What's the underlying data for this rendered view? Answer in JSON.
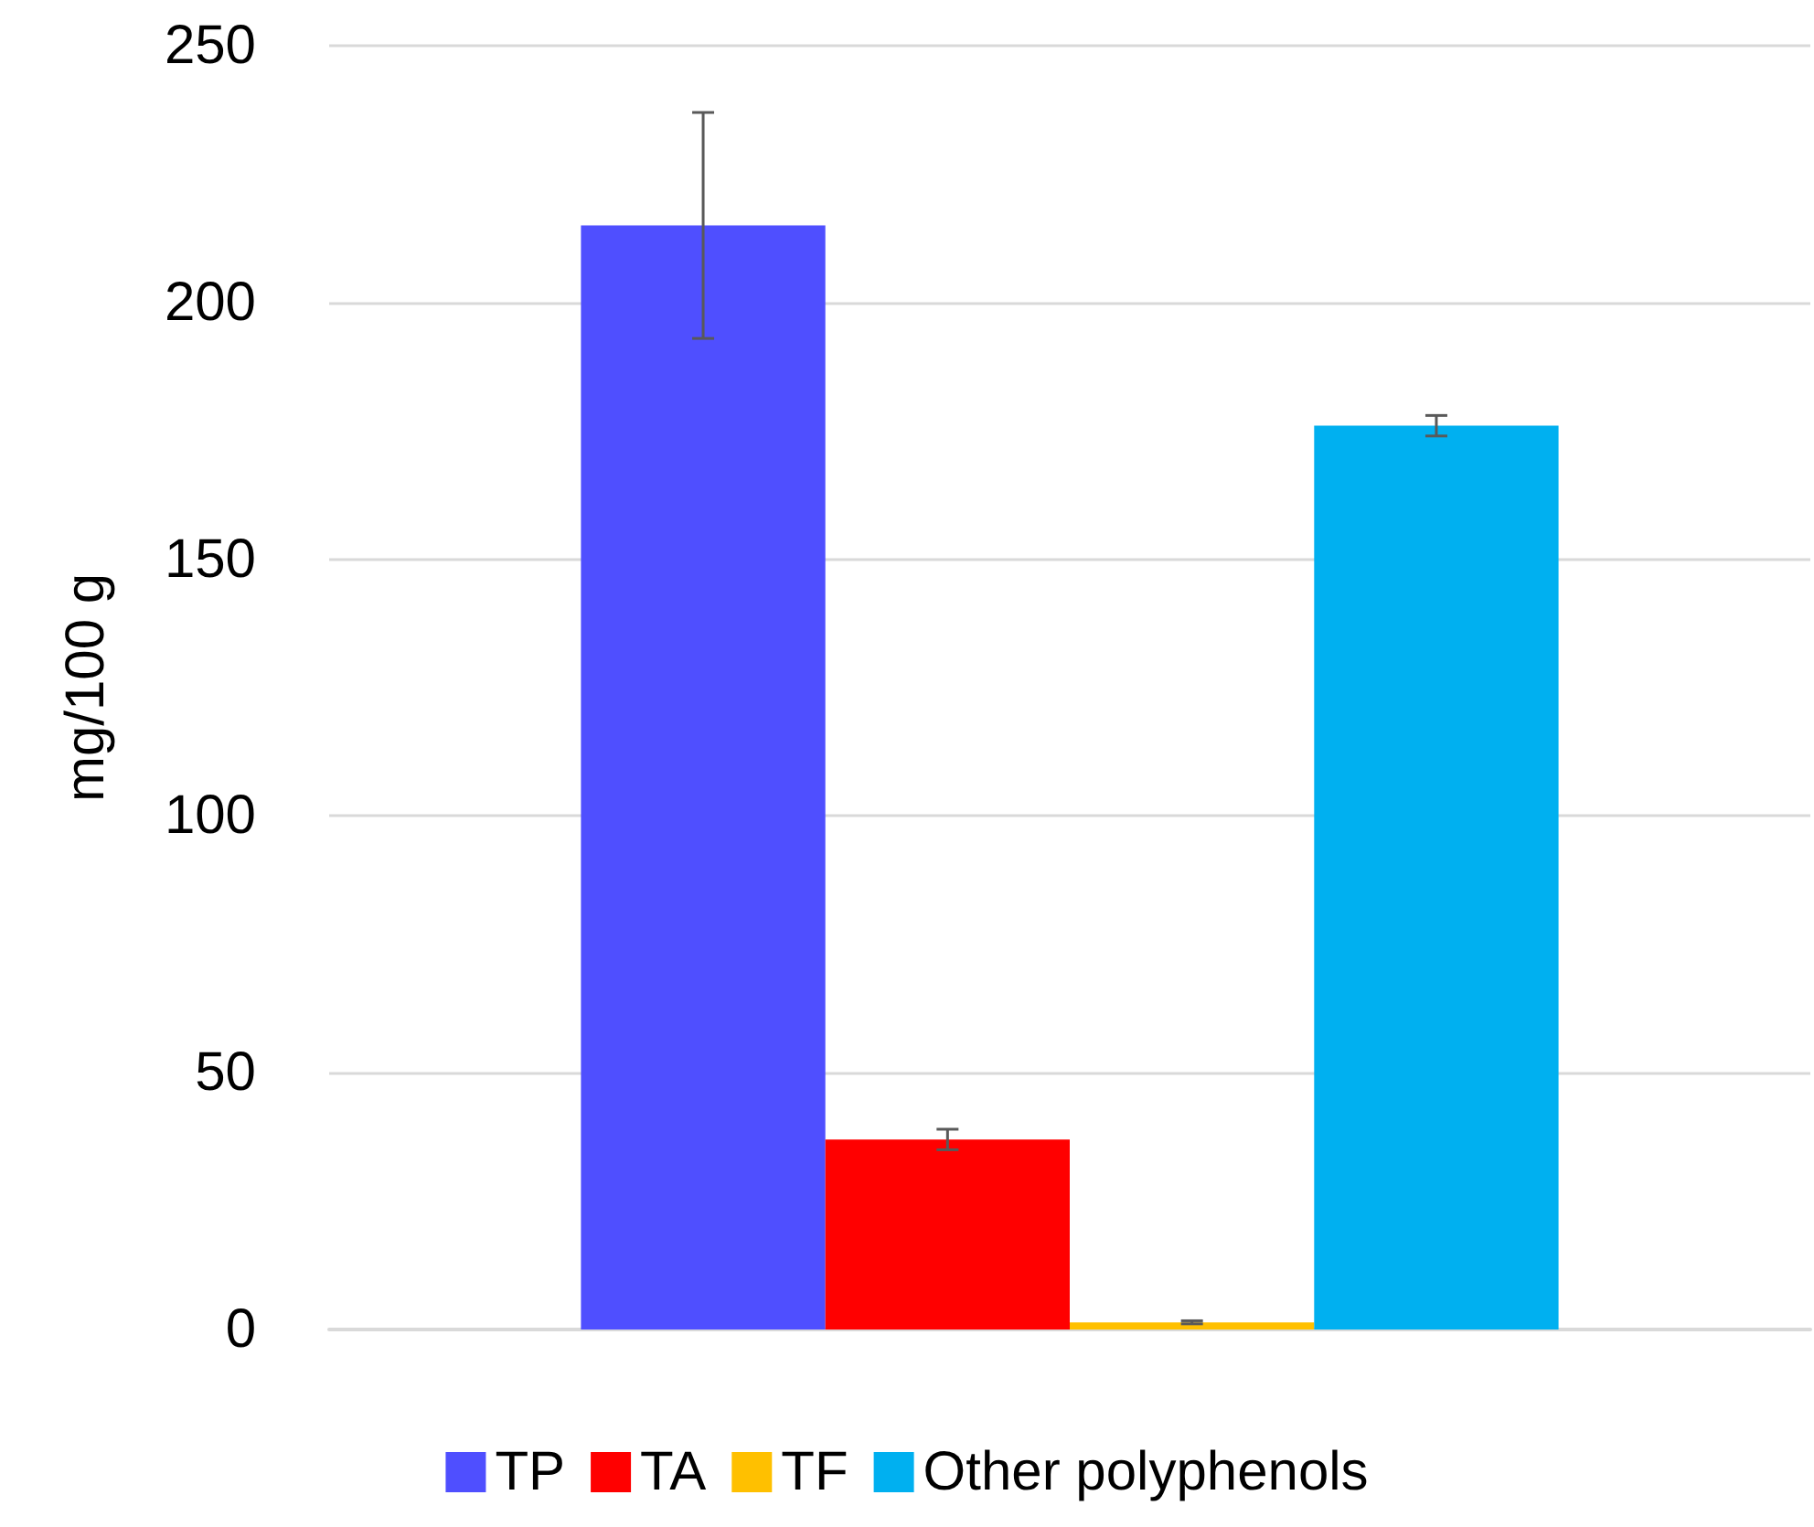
{
  "chart_data": {
    "type": "bar",
    "ylabel": "mg/100 g",
    "categories": [
      null
    ],
    "series": [
      {
        "name": "TP",
        "color": "#4f4fff",
        "values": [
          215
        ],
        "errors": [
          22
        ]
      },
      {
        "name": "TA",
        "color": "#ff0000",
        "values": [
          37
        ],
        "errors": [
          2
        ]
      },
      {
        "name": "TF",
        "color": "#ffc000",
        "values": [
          1.4
        ],
        "errors": [
          0.3
        ]
      },
      {
        "name": "Other polyphenols",
        "color": "#00b0f0",
        "values": [
          176
        ],
        "errors": [
          2
        ]
      }
    ],
    "ylim": [
      0,
      250
    ],
    "yticks": [
      0,
      50,
      100,
      150,
      200,
      250
    ],
    "grid": "y",
    "legend": "bottom"
  }
}
